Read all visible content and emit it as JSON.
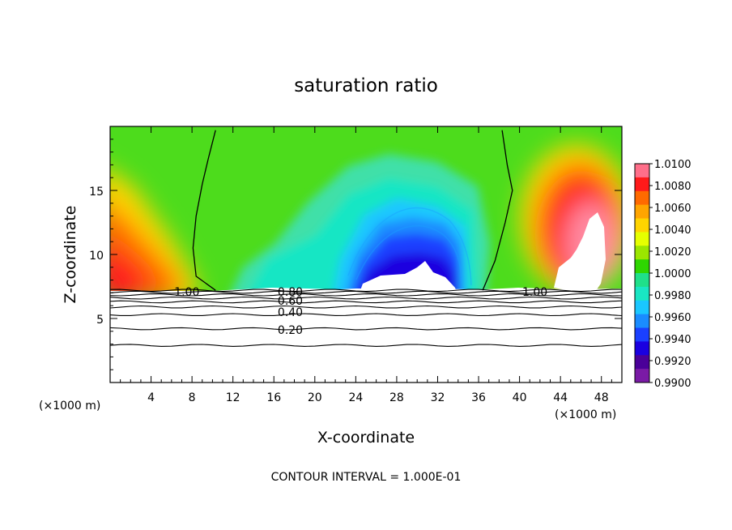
{
  "chart_data": {
    "type": "heatmap",
    "title": "saturation ratio",
    "xlabel": "X-coordinate",
    "ylabel": "Z-coordinate",
    "x_unit_left": "(×1000 m)",
    "x_unit_right": "(×1000 m)",
    "footer": "CONTOUR INTERVAL = 1.000E-01",
    "xlim": [
      0,
      50
    ],
    "ylim": [
      0,
      20
    ],
    "x_ticks": [
      4,
      8,
      12,
      16,
      20,
      24,
      28,
      32,
      36,
      40,
      44,
      48
    ],
    "y_ticks": [
      5,
      10,
      15
    ],
    "colorbar": {
      "levels": [
        "1.0100",
        "1.0080",
        "1.0060",
        "1.0040",
        "1.0020",
        "1.0000",
        "0.9980",
        "0.9960",
        "0.9940",
        "0.9920",
        "0.9900"
      ],
      "colors": [
        "#ff6f8a",
        "#ff1a1a",
        "#ff6a00",
        "#ffa500",
        "#ffd400",
        "#e6ff00",
        "#9be600",
        "#2ed600",
        "#1fe08a",
        "#19e6c4",
        "#1ac7ff",
        "#1a8cff",
        "#1a40ff",
        "#1a00e0",
        "#4a0099",
        "#7a1aa6"
      ]
    },
    "contour_labels": [
      {
        "label": "1.00",
        "x": 7.5,
        "z": 7.1
      },
      {
        "label": "0.80",
        "x": 17.6,
        "z": 7.1
      },
      {
        "label": "0.60",
        "x": 17.6,
        "z": 6.4
      },
      {
        "label": "0.40",
        "x": 17.6,
        "z": 5.5
      },
      {
        "label": "0.20",
        "x": 17.6,
        "z": 4.1
      },
      {
        "label": "1.00",
        "x": 41.5,
        "z": 7.1
      }
    ],
    "contour_lines_z": [
      2.9,
      4.2,
      5.3,
      5.9,
      6.3,
      6.6,
      6.85,
      7.05,
      7.2
    ],
    "saturation_1_line_left": [
      [
        10.3,
        19.7
      ],
      [
        9.6,
        17.5
      ],
      [
        9.0,
        15.5
      ],
      [
        8.4,
        13.0
      ],
      [
        8.1,
        10.5
      ],
      [
        8.4,
        8.3
      ],
      [
        10.3,
        7.2
      ]
    ],
    "saturation_1_line_right": [
      [
        38.3,
        19.7
      ],
      [
        38.8,
        17.0
      ],
      [
        39.3,
        15.0
      ],
      [
        38.6,
        12.5
      ],
      [
        37.6,
        9.5
      ],
      [
        36.4,
        7.2
      ]
    ],
    "cloud_free_region": {
      "x_from": 44.2,
      "x_to": 48.5,
      "z_from": 7.3,
      "z_to": 13.2
    },
    "undersaturated_core": {
      "x_from": 23.0,
      "x_to": 35.0,
      "z_top": 12.0
    }
  }
}
